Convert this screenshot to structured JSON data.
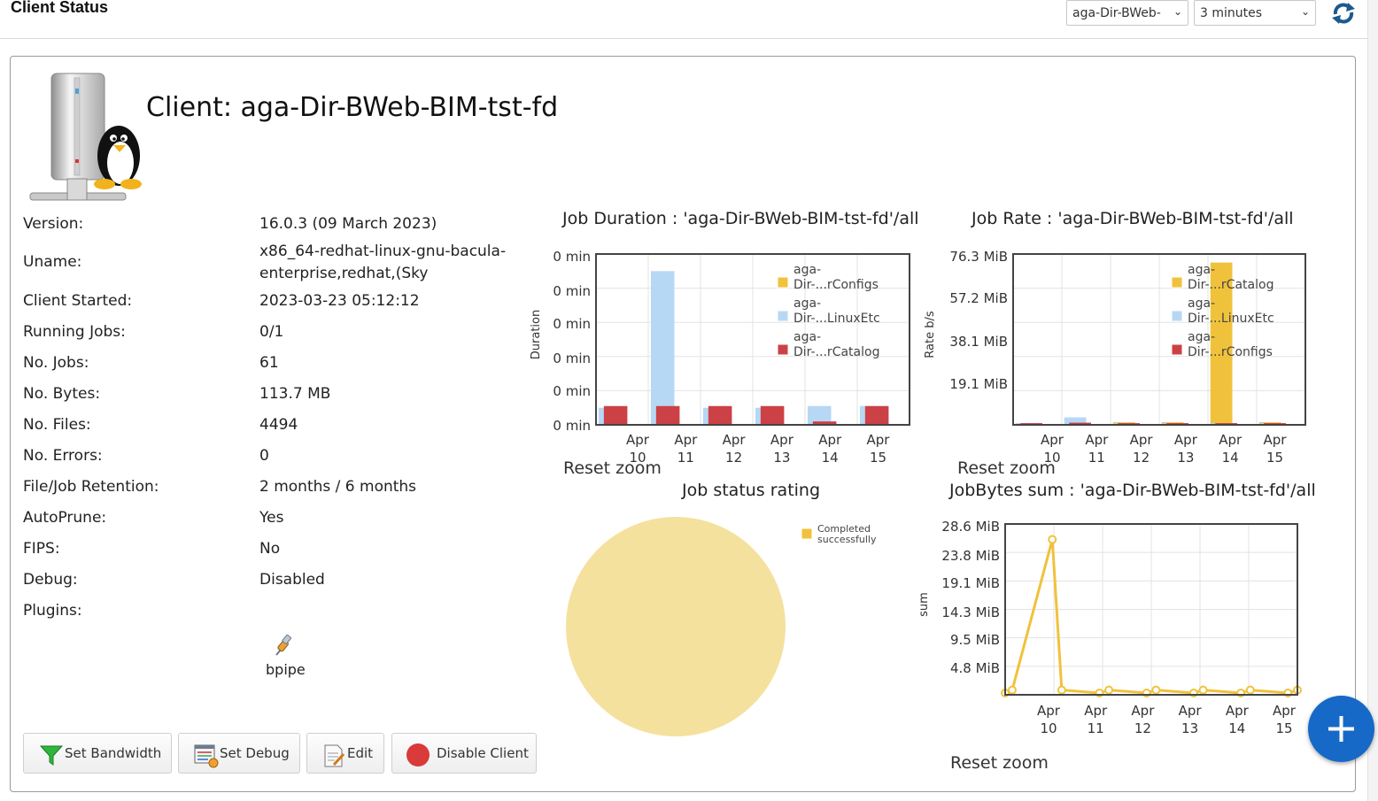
{
  "header": {
    "title": "Client Status",
    "client_select": "aga-Dir-BWeb-",
    "interval_select": "3 minutes"
  },
  "client": {
    "title": "Client: aga-Dir-BWeb-BIM-tst-fd",
    "properties": [
      {
        "label": "Version:",
        "value": "16.0.3 (09 March 2023)"
      },
      {
        "label": "Uname:",
        "value": "x86_64-redhat-linux-gnu-bacula-",
        "value2": "enterprise,redhat,(Sky"
      },
      {
        "label": "Client Started:",
        "value": "2023-03-23 05:12:12"
      },
      {
        "label": "Running Jobs:",
        "value": "0/1"
      },
      {
        "label": "No. Jobs:",
        "value": "61"
      },
      {
        "label": "No. Bytes:",
        "value": "113.7 MB"
      },
      {
        "label": "No. Files:",
        "value": "4494"
      },
      {
        "label": "No. Errors:",
        "value": "0"
      },
      {
        "label": "File/Job Retention:",
        "value": "2 months / 6 months"
      },
      {
        "label": "AutoPrune:",
        "value": "Yes"
      },
      {
        "label": "FIPS:",
        "value": "No"
      },
      {
        "label": "Debug:",
        "value": "Disabled"
      },
      {
        "label": "Plugins:",
        "value": ""
      }
    ],
    "plugin": "bpipe"
  },
  "buttons": {
    "set_bandwidth": "Set Bandwidth",
    "set_debug": "Set Debug",
    "edit": "Edit",
    "disable_client": "Disable Client"
  },
  "colors": {
    "yellow": "#f0c23c",
    "light_blue": "#b6d8f5",
    "red": "#cc4146",
    "pie": "#f5e19e",
    "fab": "#1769c8"
  },
  "chart_data": [
    {
      "type": "bar",
      "title": "Job Duration : 'aga-Dir-BWeb-BIM-tst-fd'/all",
      "ylabel": "Duration",
      "yticks": [
        "0 min",
        "0 min",
        "0 min",
        "0 min",
        "0 min",
        "0 min"
      ],
      "xticks": [
        "Apr 10",
        "Apr 11",
        "Apr 12",
        "Apr 13",
        "Apr 14",
        "Apr 15"
      ],
      "series": [
        {
          "name": "aga-Dir-...rConfigs",
          "color": "#f0c23c",
          "values": [
            0,
            0.11,
            0.02,
            0,
            0,
            0
          ]
        },
        {
          "name": "aga-Dir-...LinuxEtc",
          "color": "#b6d8f5",
          "values": [
            0.1,
            0.9,
            0.1,
            0.1,
            0.11,
            0.11
          ]
        },
        {
          "name": "aga-Dir-...rCatalog",
          "color": "#cc4146",
          "values": [
            0.11,
            0.11,
            0.11,
            0.11,
            0.02,
            0.11
          ]
        }
      ],
      "reset_label": "Reset zoom"
    },
    {
      "type": "bar",
      "title": "Job Rate : 'aga-Dir-BWeb-BIM-tst-fd'/all",
      "ylabel": "Rate b/s",
      "yticks": [
        "76.3 MiB",
        "57.2 MiB",
        "38.1 MiB",
        "19.1 MiB"
      ],
      "xticks": [
        "Apr 10",
        "Apr 11",
        "Apr 12",
        "Apr 13",
        "Apr 14",
        "Apr 15"
      ],
      "series": [
        {
          "name": "aga-Dir-...rCatalog",
          "color": "#f0c23c",
          "values": [
            0.8,
            0.8,
            1.2,
            1.2,
            76.0,
            1.2
          ]
        },
        {
          "name": "aga-Dir-...LinuxEtc",
          "color": "#b6d8f5",
          "values": [
            0.8,
            3.5,
            0.8,
            0.8,
            0.8,
            0.8
          ]
        },
        {
          "name": "aga-Dir-...rConfigs",
          "color": "#cc4146",
          "values": [
            0.8,
            1.0,
            0.8,
            0.8,
            0.8,
            0.8
          ]
        }
      ],
      "reset_label": "Reset zoom"
    },
    {
      "type": "pie",
      "title": "Job status rating",
      "slices": [
        {
          "name": "Completed successfully",
          "value": 100,
          "color": "#f5e19e"
        }
      ]
    },
    {
      "type": "line",
      "title": "JobBytes sum : 'aga-Dir-BWeb-BIM-tst-fd'/all",
      "ylabel": "sum",
      "yticks": [
        "28.6 MiB",
        "23.8 MiB",
        "19.1 MiB",
        "14.3 MiB",
        "9.5 MiB",
        "4.8 MiB"
      ],
      "xticks": [
        "Apr 10",
        "Apr 11",
        "Apr 12",
        "Apr 13",
        "Apr 14",
        "Apr 15"
      ],
      "x": [
        0,
        0.15,
        1,
        1.2,
        2,
        2.2,
        3,
        3.2,
        4,
        4.2,
        5,
        5.2,
        6,
        6.2
      ],
      "values": [
        0.3,
        0.8,
        26.0,
        0.8,
        0.3,
        0.8,
        0.3,
        0.8,
        0.3,
        0.8,
        0.3,
        0.8,
        0.3,
        0.8
      ],
      "color": "#f0c23c",
      "reset_label": "Reset zoom"
    }
  ]
}
